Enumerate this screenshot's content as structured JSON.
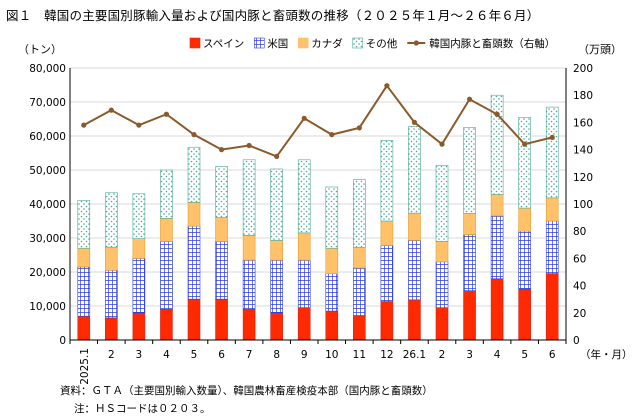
{
  "title": "図１　韓国の主要国別豚輸入量および国内豚と畜頭数の推移（２０２５年１月～２６年６月）",
  "source": "資料：ＧＴＡ（主要国別輸入数量）、韓国農林畜産検疫本部（国内豚と畜頭数）",
  "note": "注：ＨＳコードは０２０３。",
  "chart_data": {
    "type": "bar",
    "stacked": true,
    "left_unit": "（トン）",
    "right_unit": "（万頭）",
    "x_unit": "（年・月）",
    "categories": [
      "2025.1",
      "2",
      "3",
      "4",
      "5",
      "6",
      "7",
      "8",
      "9",
      "10",
      "11",
      "12",
      "26.1",
      "2",
      "3",
      "4",
      "5",
      "6"
    ],
    "ylim_left": [
      0,
      80000
    ],
    "yticks_left": [
      "0",
      "10,000",
      "20,000",
      "30,000",
      "40,000",
      "50,000",
      "60,000",
      "70,000",
      "80,000"
    ],
    "ylim_right": [
      0,
      200
    ],
    "yticks_right": [
      "0",
      "20",
      "40",
      "60",
      "80",
      "100",
      "120",
      "140",
      "160",
      "180",
      "200"
    ],
    "grid": true,
    "legend_position": "top",
    "series": [
      {
        "name": "スペイン",
        "color": "#ff2a00",
        "pattern": "solid",
        "values": [
          7000,
          6500,
          8000,
          9000,
          12000,
          12000,
          9000,
          8000,
          9500,
          8500,
          7200,
          11300,
          11800,
          9500,
          14500,
          18000,
          15000,
          19500
        ]
      },
      {
        "name": "米国",
        "color": "#2e3fd6",
        "pattern": "grid",
        "values": [
          14500,
          14000,
          16000,
          20000,
          21500,
          17000,
          14500,
          15500,
          14000,
          11000,
          14000,
          16500,
          17500,
          13500,
          16500,
          18500,
          17000,
          15500
        ]
      },
      {
        "name": "カナダ",
        "color": "#ffc26a",
        "pattern": "solid",
        "values": [
          5500,
          6800,
          5800,
          6800,
          7000,
          7000,
          7300,
          5800,
          8000,
          7500,
          6000,
          7200,
          8000,
          6000,
          6200,
          6300,
          6800,
          6800
        ]
      },
      {
        "name": "その他",
        "color": "#5fb8a8",
        "pattern": "dots",
        "values": [
          14000,
          16000,
          13200,
          14200,
          16200,
          15000,
          22200,
          21000,
          21500,
          18000,
          20000,
          23700,
          25500,
          22300,
          25300,
          29200,
          26700,
          26700
        ]
      }
    ],
    "line": {
      "name": "韓国内豚と畜頭数（右軸）",
      "color": "#8a5a2b",
      "axis": "right",
      "values": [
        158,
        169,
        158,
        166,
        151,
        140,
        143,
        135,
        163,
        151,
        156,
        187,
        160,
        144,
        177,
        166,
        144,
        149
      ]
    }
  }
}
